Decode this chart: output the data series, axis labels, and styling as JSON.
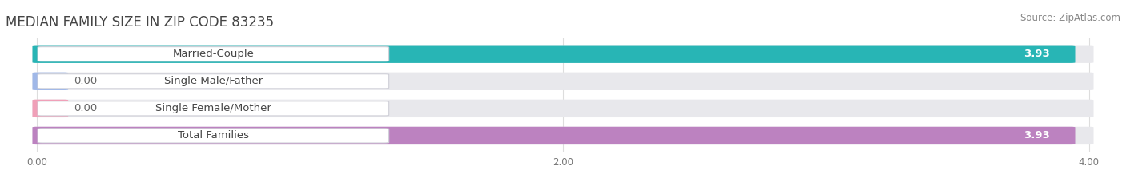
{
  "title": "MEDIAN FAMILY SIZE IN ZIP CODE 83235",
  "source": "Source: ZipAtlas.com",
  "categories": [
    "Married-Couple",
    "Single Male/Father",
    "Single Female/Mother",
    "Total Families"
  ],
  "values": [
    3.93,
    0.0,
    0.0,
    3.93
  ],
  "bar_colors": [
    "#28b5b5",
    "#a0b8e8",
    "#f0a0b8",
    "#bc82c0"
  ],
  "track_color": "#e8e8ec",
  "label_bg_color": "#ffffff",
  "background_color": "#ffffff",
  "xlim_max": 4.0,
  "xticks": [
    0.0,
    2.0,
    4.0
  ],
  "xtick_labels": [
    "0.00",
    "2.00",
    "4.00"
  ],
  "value_fontsize": 9.5,
  "label_fontsize": 9.5,
  "title_fontsize": 12,
  "source_fontsize": 8.5
}
